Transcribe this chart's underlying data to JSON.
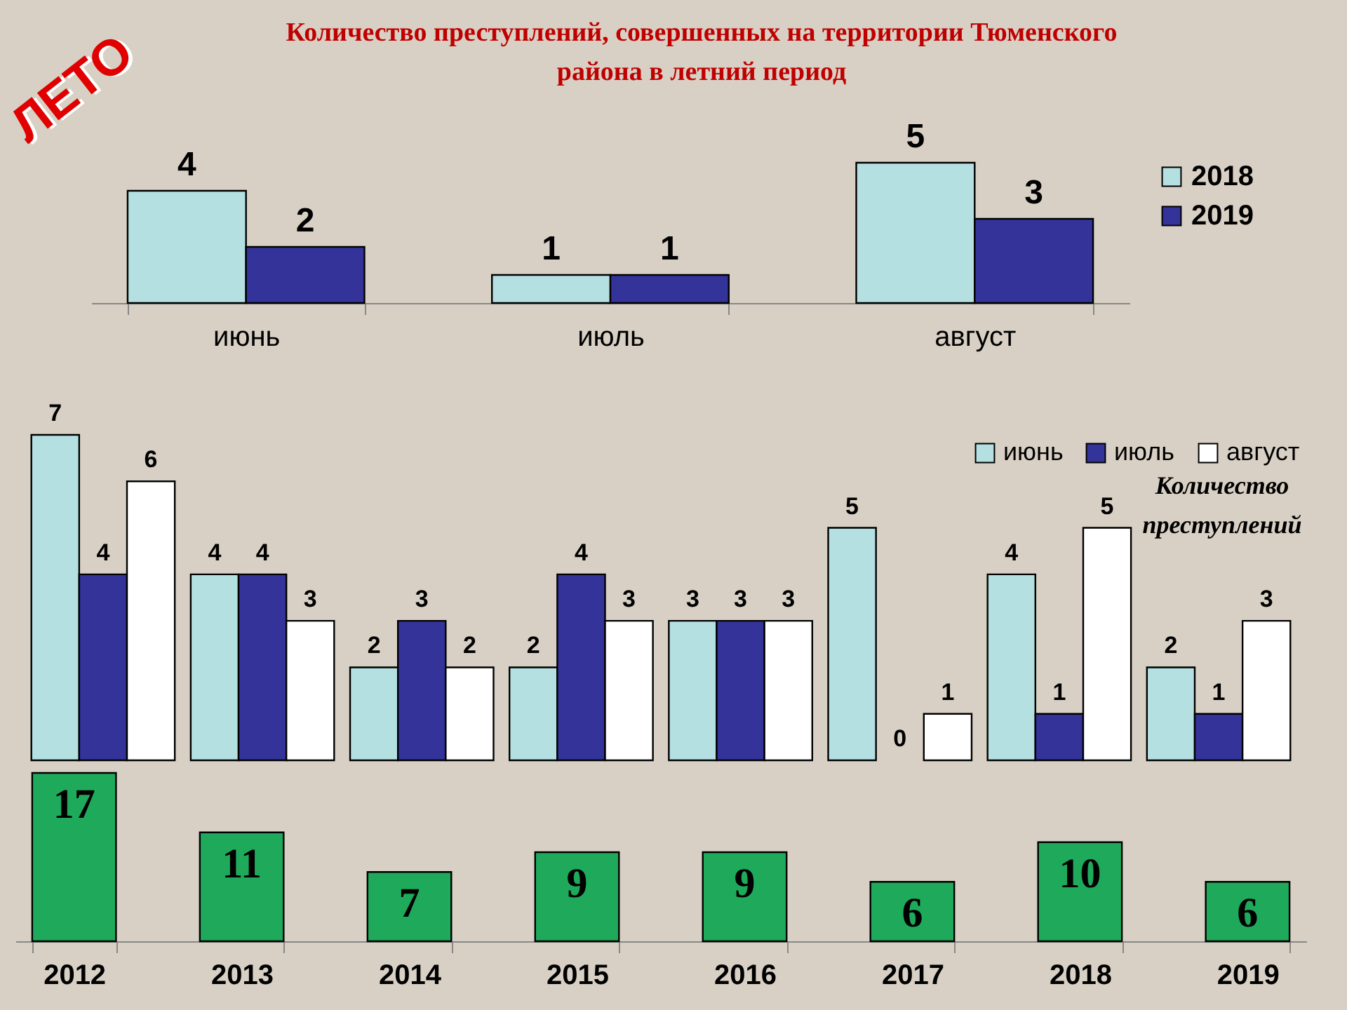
{
  "chart_data": [
    {
      "type": "bar",
      "title": "Количество преступлений, совершенных на территории Тюменского района в летний период",
      "annotations": [
        "ЛЕТО"
      ],
      "categories": [
        "июнь",
        "июль",
        "август"
      ],
      "series": [
        {
          "name": "2018",
          "color": "#b4e0e2",
          "values": [
            4,
            1,
            5
          ]
        },
        {
          "name": "2019",
          "color": "#33339a",
          "values": [
            2,
            1,
            3
          ]
        }
      ],
      "data_labels": true,
      "legend": "right",
      "tick_labels": "x"
    },
    {
      "type": "bar",
      "annotations": [
        "Количество преступлений"
      ],
      "categories": [
        "2012",
        "2013",
        "2014",
        "2015",
        "2016",
        "2017",
        "2018",
        "2019"
      ],
      "series": [
        {
          "name": "июнь",
          "color": "#b4e0e2",
          "values": [
            7,
            4,
            2,
            2,
            3,
            5,
            4,
            2
          ]
        },
        {
          "name": "июль",
          "color": "#33339a",
          "values": [
            4,
            4,
            3,
            4,
            3,
            0,
            1,
            1
          ]
        },
        {
          "name": "август",
          "color": "#ffffff",
          "values": [
            6,
            3,
            2,
            3,
            3,
            1,
            5,
            3
          ]
        }
      ],
      "data_labels": true,
      "legend": "top right",
      "tick_labels": false
    },
    {
      "type": "bar",
      "categories": [
        "2012",
        "2013",
        "2014",
        "2015",
        "2016",
        "2017",
        "2018",
        "2019"
      ],
      "values": [
        17,
        11,
        7,
        9,
        9,
        6,
        10,
        6
      ],
      "color": "#1ea95b",
      "data_labels": true,
      "tick_labels": "x"
    }
  ]
}
